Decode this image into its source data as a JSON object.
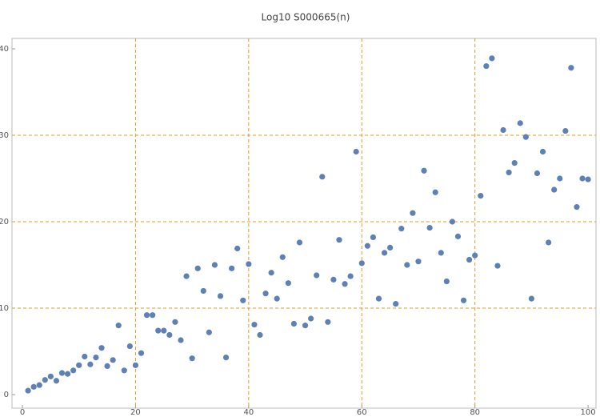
{
  "chart_data": {
    "type": "scatter",
    "title": "Log10 S000665(n)",
    "x": [
      1,
      2,
      3,
      4,
      5,
      6,
      7,
      8,
      9,
      10,
      11,
      12,
      13,
      14,
      15,
      16,
      17,
      18,
      19,
      20,
      21,
      22,
      23,
      24,
      25,
      26,
      27,
      28,
      29,
      30,
      31,
      32,
      33,
      34,
      35,
      36,
      37,
      38,
      39,
      40,
      41,
      42,
      43,
      44,
      45,
      46,
      47,
      48,
      49,
      50,
      51,
      52,
      53,
      54,
      55,
      56,
      57,
      58,
      59,
      60,
      61,
      62,
      63,
      64,
      65,
      66,
      67,
      68,
      69,
      70,
      71,
      72,
      73,
      74,
      75,
      76,
      77,
      78,
      79,
      80,
      81,
      82,
      83,
      84,
      85,
      86,
      87,
      88,
      89,
      90,
      91,
      92,
      93,
      94,
      95,
      96,
      97,
      98,
      99,
      100
    ],
    "values": [
      0.46,
      0.9,
      1.1,
      1.7,
      2.1,
      1.6,
      2.5,
      2.4,
      2.8,
      3.4,
      4.4,
      3.5,
      4.3,
      5.4,
      3.3,
      4.0,
      8.0,
      2.8,
      5.6,
      3.4,
      4.8,
      9.2,
      9.2,
      7.4,
      7.4,
      6.9,
      8.4,
      6.3,
      13.7,
      4.2,
      14.6,
      12.0,
      7.2,
      15.0,
      11.4,
      4.3,
      14.6,
      16.9,
      10.9,
      15.1,
      8.1,
      6.9,
      11.7,
      14.1,
      11.1,
      15.9,
      12.9,
      8.2,
      17.6,
      8.0,
      8.8,
      13.8,
      25.2,
      8.4,
      13.3,
      17.9,
      12.8,
      13.7,
      28.1,
      15.2,
      17.2,
      18.2,
      11.1,
      16.4,
      17.0,
      10.5,
      19.2,
      15.0,
      21.0,
      15.4,
      25.9,
      19.3,
      23.4,
      16.4,
      13.1,
      20.0,
      18.3,
      10.9,
      15.6,
      16.1,
      23.0,
      38.0,
      38.9,
      14.9,
      30.6,
      25.7,
      26.8,
      31.4,
      29.8,
      11.1,
      25.6,
      28.1,
      17.6,
      23.7,
      25.0,
      30.5,
      37.8,
      21.7,
      25.0,
      24.9
    ],
    "color": "#5e81b5",
    "xlim": [
      -1.84,
      101.4
    ],
    "ylim": [
      -1.57,
      41.2
    ],
    "xticks": [
      0,
      20,
      40,
      60,
      80,
      100
    ],
    "yticks": [
      0,
      10,
      20,
      30,
      40
    ],
    "grid": true,
    "grid_color": "#e69a21"
  }
}
